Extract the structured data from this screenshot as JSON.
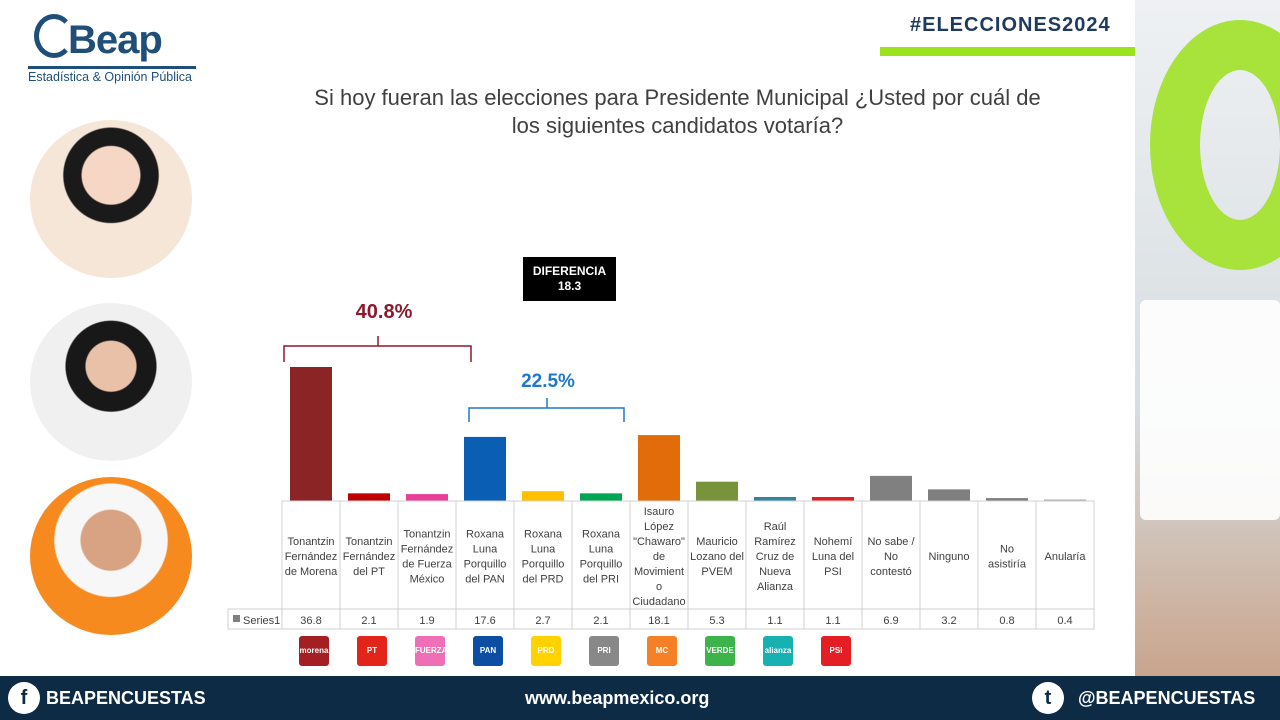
{
  "header": {
    "logo_text": "Beap",
    "logo_subtitle": "Estadística & Opinión Pública",
    "hashtag": "#ELECCIONES2024"
  },
  "question": "Si hoy fueran las elecciones para Presidente Municipal ¿Usted por cuál de los siguientes candidatos votaría?",
  "annotations": {
    "diff_label": "DIFERENCIA",
    "diff_value": "18.3",
    "group1_total": "40.8%",
    "group1_color": "#8b1a2e",
    "group2_total": "22.5%",
    "group2_color": "#1f78c8"
  },
  "chart_data": {
    "type": "bar",
    "series_name": "Series1",
    "categories": [
      "Tonantzin Fernández de Morena",
      "Tonantzin Fernández del PT",
      "Tonantzin Fernández de Fuerza México",
      "Roxana Luna Porquillo del PAN",
      "Roxana Luna Porquillo del PRD",
      "Roxana Luna Porquillo del PRI",
      "Isauro López \"Chawaro\" de Movimient o Ciudadano",
      "Mauricio Lozano del PVEM",
      "Raúl Ramírez Cruz de Nueva Alianza",
      "Nohemí Luna del PSI",
      "No sabe / No contestó",
      "Ninguno",
      "No asistiría",
      "Anularía"
    ],
    "values": [
      36.8,
      2.1,
      1.9,
      17.6,
      2.7,
      2.1,
      18.1,
      5.3,
      1.1,
      1.1,
      6.9,
      3.2,
      0.8,
      0.4
    ],
    "value_labels": [
      "36.8",
      "2.1",
      "1.9",
      "17.6",
      "2.7",
      "2.1",
      "18.1",
      "5.3",
      "1.1",
      "1.1",
      "6.9",
      "3.2",
      "0.8",
      "0.4"
    ],
    "colors": [
      "#8b2525",
      "#c00000",
      "#e83e9a",
      "#0a5fb4",
      "#ffc000",
      "#00a651",
      "#e36c0a",
      "#77933c",
      "#31859c",
      "#e02020",
      "#808080",
      "#7f7f7f",
      "#7f7f7f",
      "#a6a6a6"
    ],
    "ylim": [
      0,
      40
    ],
    "data_table": true
  },
  "party_logos": [
    {
      "label": "morena",
      "color": "#a31f24"
    },
    {
      "label": "PT",
      "color": "#e3241b"
    },
    {
      "label": "FUERZA MÉXICO",
      "color": "#ee6fb6"
    },
    {
      "label": "PAN",
      "color": "#0b4ea2"
    },
    {
      "label": "PRD",
      "color": "#ffd200"
    },
    {
      "label": "PRI",
      "color": "#888888"
    },
    {
      "label": "MC",
      "color": "#f58025"
    },
    {
      "label": "VERDE",
      "color": "#3cb44a"
    },
    {
      "label": "alianza",
      "color": "#17b1b1"
    },
    {
      "label": "PSI",
      "color": "#e31e24"
    }
  ],
  "footer": {
    "facebook": "BEAPENCUESTAS",
    "website": "www.beapmexico.org",
    "twitter": "@BEAPENCUESTAS"
  }
}
